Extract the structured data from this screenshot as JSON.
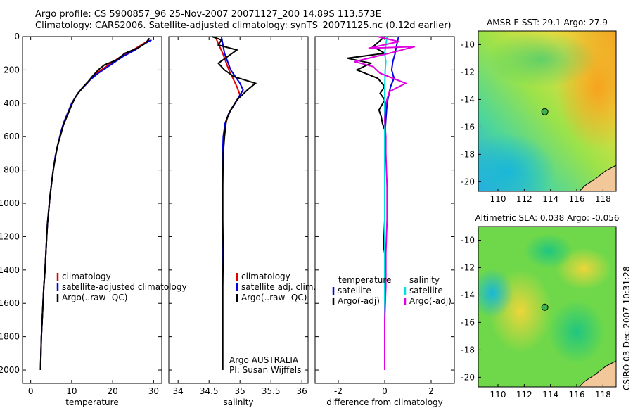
{
  "header": {
    "line1": "Argo profile: CS 5900857_96 25-Nov-2007 20071127_200 14.89S 113.573E",
    "line2": "Climatology: CARS2006. Satellite-adjusted climatology: synTS_20071125.nc (0.12d earlier)"
  },
  "side_label": "CSIRO 03-Dec-2007 10:31:28",
  "colors": {
    "clim": "#e00000",
    "sat": "#0000e0",
    "argo": "#000000",
    "sat2": "#00e0e0",
    "argo2": "#e000e0"
  },
  "chart_data": [
    {
      "type": "line",
      "name": "temperature",
      "xlabel": "temperature",
      "ylabel": "",
      "xlim": [
        -2,
        32
      ],
      "ylim": [
        2080,
        0
      ],
      "xticks": [
        0,
        10,
        20,
        30
      ],
      "yticks": [
        0,
        200,
        400,
        600,
        800,
        1000,
        1200,
        1400,
        1600,
        1800,
        2000
      ],
      "legend": [
        "climatology",
        "satellite-adjusted climatology",
        "Argo(..raw -QC)"
      ],
      "series": [
        {
          "name": "climatology",
          "color": "clim",
          "points": [
            [
              29,
              20
            ],
            [
              27,
              50
            ],
            [
              25,
              80
            ],
            [
              22,
              120
            ],
            [
              19,
              170
            ],
            [
              16,
              220
            ],
            [
              14.5,
              260
            ],
            [
              13,
              300
            ],
            [
              11.5,
              340
            ],
            [
              10,
              400
            ],
            [
              9,
              460
            ],
            [
              8,
              520
            ],
            [
              7.3,
              580
            ],
            [
              6.5,
              660
            ],
            [
              6,
              720
            ],
            [
              5.5,
              800
            ],
            [
              5.1,
              880
            ],
            [
              4.7,
              960
            ],
            [
              4.4,
              1040
            ],
            [
              4.1,
              1120
            ],
            [
              3.9,
              1200
            ],
            [
              3.7,
              1300
            ],
            [
              3.5,
              1400
            ],
            [
              3.2,
              1500
            ],
            [
              3,
              1600
            ],
            [
              2.8,
              1700
            ],
            [
              2.6,
              1800
            ],
            [
              2.5,
              1900
            ],
            [
              2.4,
              2000
            ]
          ]
        },
        {
          "name": "satellite-adjusted climatology",
          "color": "sat",
          "points": [
            [
              29.5,
              20
            ],
            [
              28,
              40
            ],
            [
              25.5,
              80
            ],
            [
              22.5,
              120
            ],
            [
              19.5,
              170
            ],
            [
              16.5,
              220
            ],
            [
              14.5,
              260
            ],
            [
              13,
              300
            ],
            [
              11.5,
              340
            ],
            [
              10,
              400
            ],
            [
              9,
              460
            ],
            [
              8,
              520
            ],
            [
              7.3,
              580
            ],
            [
              6.5,
              660
            ],
            [
              6,
              720
            ],
            [
              5.5,
              800
            ],
            [
              5.1,
              880
            ],
            [
              4.7,
              960
            ],
            [
              4.4,
              1040
            ],
            [
              4.1,
              1120
            ],
            [
              3.9,
              1200
            ],
            [
              3.7,
              1300
            ],
            [
              3.5,
              1400
            ],
            [
              3.2,
              1500
            ],
            [
              3,
              1600
            ],
            [
              2.8,
              1700
            ],
            [
              2.6,
              1800
            ],
            [
              2.5,
              1900
            ],
            [
              2.4,
              2000
            ]
          ]
        },
        {
          "name": "Argo(..raw -QC)",
          "color": "argo",
          "points": [
            [
              29,
              10
            ],
            [
              28,
              40
            ],
            [
              26,
              70
            ],
            [
              23,
              100
            ],
            [
              21,
              140
            ],
            [
              18,
              170
            ],
            [
              16.5,
              200
            ],
            [
              15,
              240
            ],
            [
              14,
              270
            ],
            [
              12.5,
              310
            ],
            [
              11,
              360
            ],
            [
              10,
              410
            ],
            [
              9,
              470
            ],
            [
              8,
              530
            ],
            [
              7.2,
              600
            ],
            [
              6.5,
              660
            ],
            [
              6,
              730
            ],
            [
              5.5,
              800
            ],
            [
              5.1,
              880
            ],
            [
              4.7,
              960
            ],
            [
              4.4,
              1040
            ],
            [
              4.1,
              1120
            ],
            [
              3.9,
              1200
            ],
            [
              3.7,
              1300
            ],
            [
              3.5,
              1400
            ],
            [
              3.2,
              1500
            ],
            [
              3,
              1600
            ],
            [
              2.8,
              1700
            ],
            [
              2.6,
              1800
            ],
            [
              2.5,
              1900
            ],
            [
              2.4,
              2000
            ]
          ]
        }
      ]
    },
    {
      "type": "line",
      "name": "salinity",
      "xlabel": "salinity",
      "ylabel": "",
      "xlim": [
        33.85,
        36.1
      ],
      "ylim": [
        2080,
        0
      ],
      "xticks": [
        34,
        34.5,
        35,
        35.5,
        36
      ],
      "xticklabels": [
        "34",
        "34.5",
        "35",
        "35.5",
        "36"
      ],
      "yticks": [
        0,
        200,
        400,
        600,
        800,
        1000,
        1200,
        1400,
        1600,
        1800,
        2000
      ],
      "legend": [
        "climatology",
        "satellite adj. clim.",
        "Argo(..raw -QC)"
      ],
      "annotation": [
        "Argo AUSTRALIA",
        "PI: Susan Wijffels"
      ],
      "series": [
        {
          "name": "climatology",
          "color": "clim",
          "points": [
            [
              34.6,
              0
            ],
            [
              34.72,
              100
            ],
            [
              34.82,
              200
            ],
            [
              34.95,
              300
            ],
            [
              35.0,
              350
            ],
            [
              34.92,
              400
            ],
            [
              34.82,
              460
            ],
            [
              34.77,
              520
            ],
            [
              34.74,
              600
            ],
            [
              34.72,
              700
            ],
            [
              34.72,
              900
            ],
            [
              34.72,
              1100
            ],
            [
              34.72,
              1300
            ],
            [
              34.72,
              1500
            ],
            [
              34.72,
              1700
            ],
            [
              34.72,
              1900
            ],
            [
              34.72,
              2000
            ]
          ]
        },
        {
          "name": "satellite adj. clim.",
          "color": "sat",
          "points": [
            [
              34.7,
              0
            ],
            [
              34.75,
              100
            ],
            [
              34.85,
              200
            ],
            [
              35.0,
              280
            ],
            [
              35.05,
              320
            ],
            [
              34.92,
              400
            ],
            [
              34.82,
              460
            ],
            [
              34.76,
              520
            ],
            [
              34.73,
              600
            ],
            [
              34.72,
              700
            ],
            [
              34.72,
              900
            ],
            [
              34.72,
              1100
            ],
            [
              34.72,
              1300
            ],
            [
              34.72,
              1500
            ],
            [
              34.72,
              1700
            ],
            [
              34.72,
              1900
            ],
            [
              34.72,
              2000
            ]
          ]
        },
        {
          "name": "Argo(..raw -QC)",
          "color": "argo",
          "points": [
            [
              34.55,
              0
            ],
            [
              34.7,
              20
            ],
            [
              34.65,
              50
            ],
            [
              34.95,
              80
            ],
            [
              34.8,
              120
            ],
            [
              34.65,
              160
            ],
            [
              34.75,
              200
            ],
            [
              34.9,
              240
            ],
            [
              35.25,
              280
            ],
            [
              35.12,
              320
            ],
            [
              34.95,
              380
            ],
            [
              34.85,
              440
            ],
            [
              34.78,
              500
            ],
            [
              34.75,
              600
            ],
            [
              34.73,
              700
            ],
            [
              34.72,
              900
            ],
            [
              34.72,
              1100
            ],
            [
              34.73,
              1300
            ],
            [
              34.72,
              1500
            ],
            [
              34.72,
              1700
            ],
            [
              34.72,
              1900
            ],
            [
              34.72,
              2000
            ]
          ]
        }
      ]
    },
    {
      "type": "line",
      "name": "difference",
      "xlabel": "difference from climatology",
      "ylabel": "",
      "xlim": [
        -3,
        3
      ],
      "ylim": [
        2080,
        0
      ],
      "xticks": [
        -2,
        0,
        2
      ],
      "yticks": [
        0,
        200,
        400,
        600,
        800,
        1000,
        1200,
        1400,
        1600,
        1800,
        2000
      ],
      "legend_left": [
        "temperature",
        "satellite",
        "Argo(-adj)"
      ],
      "legend_right": [
        "salinity",
        "satellite",
        "Argo(-adj)"
      ],
      "series": [
        {
          "name": "temperature satellite",
          "color": "sat",
          "points": [
            [
              0.6,
              0
            ],
            [
              0.5,
              60
            ],
            [
              0.45,
              100
            ],
            [
              0.35,
              150
            ],
            [
              0.3,
              200
            ],
            [
              0.4,
              250
            ],
            [
              0.25,
              300
            ],
            [
              0.1,
              400
            ],
            [
              0.05,
              500
            ],
            [
              0,
              600
            ],
            [
              0,
              800
            ],
            [
              0,
              1000
            ],
            [
              0,
              1200
            ],
            [
              0,
              1400
            ],
            [
              0,
              1600
            ],
            [
              0,
              1800
            ],
            [
              0,
              2000
            ]
          ]
        },
        {
          "name": "temperature Argo(-adj)",
          "color": "argo",
          "points": [
            [
              0,
              0
            ],
            [
              -0.5,
              60
            ],
            [
              0,
              100
            ],
            [
              -1.6,
              130
            ],
            [
              -0.6,
              160
            ],
            [
              -1.2,
              200
            ],
            [
              -0.3,
              250
            ],
            [
              0,
              300
            ],
            [
              -0.2,
              340
            ],
            [
              0,
              380
            ],
            [
              -0.25,
              440
            ],
            [
              -0.15,
              480
            ],
            [
              -0.1,
              520
            ],
            [
              0,
              560
            ],
            [
              0,
              700
            ],
            [
              0,
              900
            ],
            [
              0,
              1100
            ],
            [
              -0.05,
              1260
            ],
            [
              0,
              1300
            ],
            [
              0,
              1500
            ],
            [
              0,
              1700
            ],
            [
              0,
              1900
            ],
            [
              0,
              2000
            ]
          ]
        },
        {
          "name": "salinity satellite",
          "color": "sat2",
          "points": [
            [
              0.1,
              0
            ],
            [
              0.05,
              50
            ],
            [
              0.0,
              100
            ],
            [
              0.05,
              150
            ],
            [
              0.02,
              200
            ],
            [
              0,
              300
            ],
            [
              0,
              400
            ],
            [
              0,
              600
            ],
            [
              0,
              800
            ],
            [
              0,
              1000
            ],
            [
              0,
              1200
            ],
            [
              0,
              1400
            ],
            [
              0,
              1600
            ],
            [
              0,
              1800
            ],
            [
              0,
              2000
            ]
          ]
        },
        {
          "name": "salinity Argo(-adj)",
          "color": "argo2",
          "points": [
            [
              -0.3,
              0
            ],
            [
              0.6,
              30
            ],
            [
              -0.7,
              70
            ],
            [
              1.3,
              60
            ],
            [
              0.2,
              100
            ],
            [
              -1.3,
              150
            ],
            [
              -0.5,
              180
            ],
            [
              -0.2,
              220
            ],
            [
              0.9,
              280
            ],
            [
              0.2,
              330
            ],
            [
              0.05,
              400
            ],
            [
              0,
              500
            ],
            [
              0.05,
              600
            ],
            [
              0.05,
              700
            ],
            [
              0.1,
              900
            ],
            [
              0.1,
              1100
            ],
            [
              0.05,
              1300
            ],
            [
              0.05,
              1500
            ],
            [
              0,
              1700
            ],
            [
              0,
              1900
            ],
            [
              0,
              2000
            ]
          ]
        }
      ]
    },
    {
      "type": "heatmap",
      "name": "sst_map",
      "title": "AMSR-E SST: 29.1  Argo: 27.9",
      "xlim": [
        108.5,
        119
      ],
      "ylim": [
        -20.7,
        -9
      ],
      "xticks": [
        110,
        112,
        114,
        116,
        118
      ],
      "yticks": [
        -10,
        -12,
        -14,
        -16,
        -18,
        -20
      ],
      "marker": [
        113.57,
        -14.89
      ]
    },
    {
      "type": "heatmap",
      "name": "sla_map",
      "title": "Altimetric SLA: 0.038  Argo: -0.056",
      "xlim": [
        108.5,
        119
      ],
      "ylim": [
        -20.7,
        -9
      ],
      "xticks": [
        110,
        112,
        114,
        116,
        118
      ],
      "yticks": [
        -10,
        -12,
        -14,
        -16,
        -18,
        -20
      ],
      "marker": [
        113.57,
        -14.89
      ]
    }
  ]
}
